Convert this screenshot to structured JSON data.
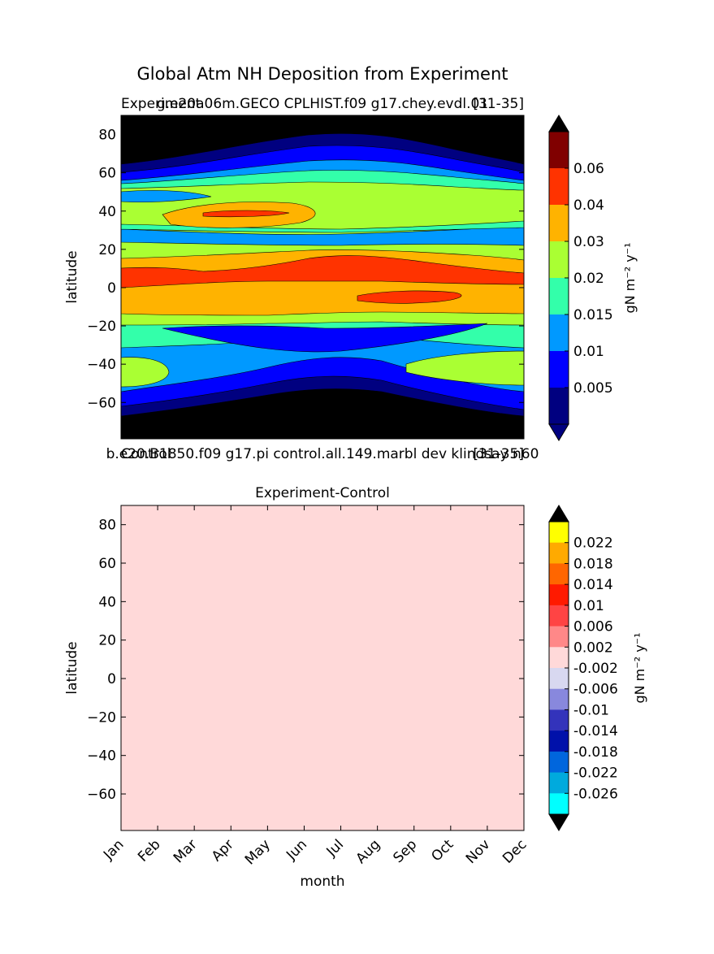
{
  "figure": {
    "suptitle": "Global Atm NH Deposition from Experiment"
  },
  "chart_data": [
    {
      "type": "contour",
      "panel": "experiment",
      "title_left": "Experiment",
      "title_center": "g.e20a06m.GECO CPLHIST.f09 g17.chey.evdl.01",
      "title_right": "[31-35]",
      "ylabel": "latitude",
      "ylim": [
        -79,
        90
      ],
      "y_ticks": [
        "80",
        "60",
        "40",
        "20",
        "0",
        "−20",
        "−40",
        "−60"
      ],
      "y_tick_values": [
        80,
        60,
        40,
        20,
        0,
        -20,
        -40,
        -60
      ],
      "xlim": [
        0,
        11
      ],
      "colorbar": {
        "label": "gN m⁻² y⁻¹",
        "ticks": [
          "0.005",
          "0.01",
          "0.015",
          "0.02",
          "0.03",
          "0.04",
          "0.06"
        ],
        "extend": "both",
        "levels": [
          0,
          0.005,
          0.01,
          0.015,
          0.02,
          0.03,
          0.04,
          0.06,
          0.07
        ],
        "colors": [
          "#000080",
          "#0000ff",
          "#0099ff",
          "#33ffaa",
          "#aaff33",
          "#ffb300",
          "#ff3300",
          "#800000"
        ],
        "under_color": "#000080",
        "over_color": "#000000"
      },
      "background_color": "#000000"
    },
    {
      "type": "contour",
      "panel": "difference",
      "title_left": "Control",
      "title_center": "b.e20.B1850.f09 g17.pi control.all.149.marbl dev klindsay n60",
      "title_right": "[31-35]",
      "subtitle": "Experiment-Control",
      "ylabel": "latitude",
      "xlabel": "month",
      "ylim": [
        -79,
        90
      ],
      "y_ticks": [
        "80",
        "60",
        "40",
        "20",
        "0",
        "−20",
        "−40",
        "−60"
      ],
      "y_tick_values": [
        80,
        60,
        40,
        20,
        0,
        -20,
        -40,
        -60
      ],
      "categories": [
        "Jan",
        "Feb",
        "Mar",
        "Apr",
        "May",
        "Jun",
        "Jul",
        "Aug",
        "Sep",
        "Oct",
        "Nov",
        "Dec"
      ],
      "fill_color": "#ffd9d9",
      "colorbar": {
        "label": "gN m⁻² y⁻¹",
        "ticks": [
          "0.022",
          "0.018",
          "0.014",
          "0.01",
          "0.006",
          "0.002",
          "-0.002",
          "-0.006",
          "-0.01",
          "-0.014",
          "-0.018",
          "-0.022",
          "-0.026"
        ],
        "extend": "both",
        "colors": [
          "#ffff00",
          "#ffaa00",
          "#ff6600",
          "#ff1a00",
          "#ff4444",
          "#ff8888",
          "#ffd9d9",
          "#d8d8f0",
          "#8888dd",
          "#3333bb",
          "#0011aa",
          "#0066dd",
          "#00aadd",
          "#00ffff"
        ],
        "under_color": "#000000",
        "over_color": "#000000"
      }
    }
  ]
}
